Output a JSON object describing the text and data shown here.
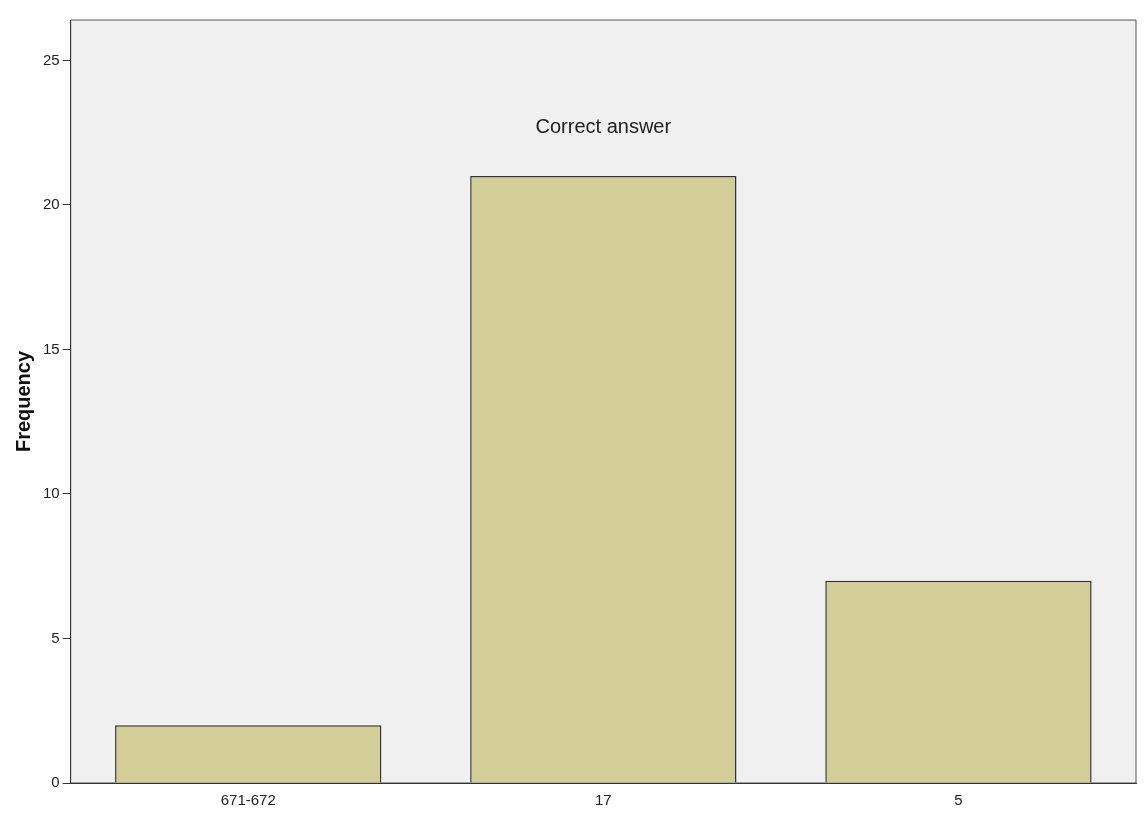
{
  "chart_data": {
    "type": "bar",
    "ylabel": "Frequency",
    "categories": [
      "671-672",
      "17",
      "5"
    ],
    "values": [
      2,
      21,
      7
    ],
    "color": "#d3ce97",
    "ylim": [
      0,
      26.4
    ],
    "yticks": [
      0,
      5,
      10,
      15,
      20,
      25
    ],
    "grid": false,
    "legend": false,
    "annotations": [
      "Correct answer"
    ]
  }
}
